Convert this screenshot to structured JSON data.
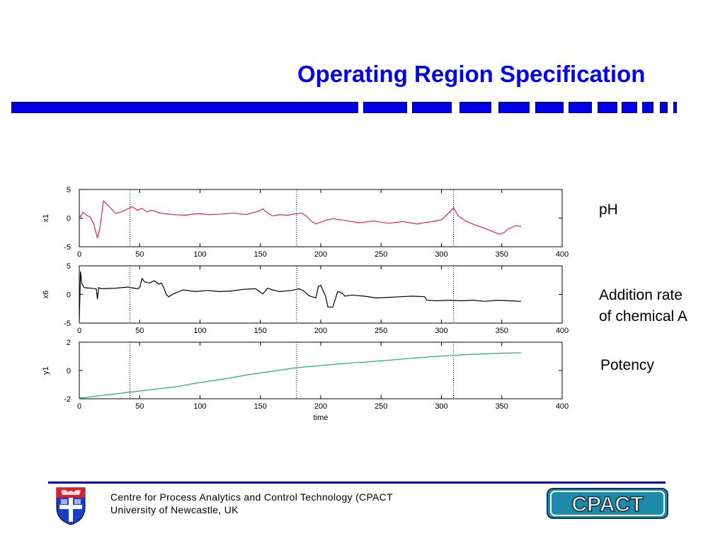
{
  "slide": {
    "title": "Operating Region Specification",
    "bar_color": "#0000e8"
  },
  "side_labels": {
    "ph": "pH",
    "addition_line1": "Addition rate",
    "addition_line2": "of chemical A",
    "potency": "Potency"
  },
  "footer": {
    "line1": "Centre for Process Analytics and Control Technology  (CPACT",
    "line2": "University of Newcastle, UK",
    "logo_text": "CPACT"
  },
  "chart_data": [
    {
      "type": "line",
      "ylabel": "x1",
      "xlim": [
        0,
        400
      ],
      "ylim": [
        -5,
        5
      ],
      "xticks": [
        0,
        50,
        100,
        150,
        200,
        250,
        300,
        350,
        400
      ],
      "yticks": [
        -5,
        0,
        5
      ],
      "vlines": [
        42,
        180,
        310
      ],
      "color": "#e0206a",
      "x": [
        0,
        3,
        6,
        9,
        12,
        15,
        17,
        20,
        24,
        30,
        36,
        40,
        44,
        48,
        52,
        56,
        60,
        65,
        70,
        78,
        88,
        98,
        108,
        118,
        128,
        138,
        148,
        152,
        156,
        160,
        166,
        172,
        178,
        184,
        188,
        192,
        196,
        200,
        204,
        210,
        220,
        232,
        244,
        256,
        268,
        280,
        292,
        300,
        306,
        310,
        314,
        320,
        328,
        336,
        342,
        348,
        352,
        356,
        362,
        366
      ],
      "y": [
        0.0,
        1.0,
        0.5,
        0.2,
        -1.0,
        -3.5,
        -1.8,
        3.0,
        2.2,
        0.8,
        1.2,
        1.6,
        2.0,
        1.4,
        1.7,
        1.1,
        1.4,
        1.0,
        0.8,
        0.6,
        0.5,
        0.8,
        0.6,
        0.7,
        0.9,
        0.6,
        1.2,
        1.6,
        0.9,
        0.4,
        0.6,
        0.5,
        0.7,
        0.9,
        0.4,
        -0.5,
        -1.0,
        -0.7,
        -0.4,
        -0.1,
        -0.4,
        -0.8,
        -0.5,
        -0.9,
        -0.6,
        -1.0,
        -0.6,
        -0.3,
        0.9,
        1.8,
        0.4,
        -0.5,
        -1.2,
        -1.8,
        -2.3,
        -2.8,
        -2.5,
        -1.8,
        -1.3,
        -1.5
      ]
    },
    {
      "type": "line",
      "ylabel": "x6",
      "xlim": [
        0,
        400
      ],
      "ylim": [
        -5,
        5
      ],
      "xticks": [
        0,
        50,
        100,
        150,
        200,
        250,
        300,
        350,
        400
      ],
      "yticks": [
        -5,
        0,
        5
      ],
      "vlines": [
        42,
        180,
        310
      ],
      "color": "#000000",
      "x": [
        0,
        1,
        2,
        4,
        14,
        15,
        16,
        18,
        30,
        40,
        48,
        50,
        52,
        54,
        58,
        62,
        66,
        68,
        70,
        72,
        74,
        78,
        86,
        96,
        106,
        116,
        126,
        136,
        146,
        150,
        152,
        156,
        160,
        166,
        176,
        182,
        186,
        190,
        196,
        198,
        200,
        204,
        206,
        210,
        214,
        216,
        218,
        220,
        226,
        236,
        246,
        256,
        266,
        276,
        286,
        288,
        296,
        306,
        316,
        326,
        336,
        346,
        356,
        366
      ],
      "y": [
        -4.5,
        4.0,
        2.0,
        1.2,
        1.0,
        -0.8,
        1.2,
        1.0,
        1.1,
        1.3,
        1.0,
        1.2,
        2.8,
        2.2,
        2.0,
        2.4,
        1.8,
        2.0,
        1.2,
        0.0,
        -0.4,
        0.1,
        0.8,
        0.5,
        0.7,
        0.5,
        0.6,
        0.9,
        1.0,
        0.4,
        0.1,
        1.1,
        0.8,
        0.5,
        0.7,
        1.0,
        0.6,
        -0.2,
        -0.6,
        1.4,
        1.6,
        -0.3,
        -2.2,
        -2.2,
        0.5,
        0.4,
        0.2,
        -0.3,
        -0.1,
        -0.3,
        -0.6,
        -0.5,
        -0.4,
        -0.3,
        -0.4,
        -1.0,
        -1.1,
        -1.0,
        -1.1,
        -1.0,
        -1.2,
        -1.0,
        -1.1,
        -1.2
      ]
    },
    {
      "type": "line",
      "ylabel": "y1",
      "xlabel": "time",
      "xlim": [
        0,
        400
      ],
      "ylim": [
        -2,
        2
      ],
      "xticks": [
        0,
        50,
        100,
        150,
        200,
        250,
        300,
        350,
        400
      ],
      "yticks": [
        -2,
        0,
        2
      ],
      "vlines": [
        42,
        180,
        310
      ],
      "color": "#20b080",
      "x": [
        0,
        1,
        2,
        10,
        20,
        40,
        60,
        80,
        100,
        120,
        140,
        160,
        180,
        200,
        220,
        240,
        260,
        280,
        300,
        320,
        340,
        366
      ],
      "y": [
        -2.0,
        -1.9,
        -1.95,
        -1.85,
        -1.75,
        -1.55,
        -1.35,
        -1.15,
        -0.85,
        -0.6,
        -0.3,
        -0.05,
        0.2,
        0.35,
        0.5,
        0.62,
        0.75,
        0.9,
        1.02,
        1.12,
        1.2,
        1.25
      ]
    }
  ]
}
